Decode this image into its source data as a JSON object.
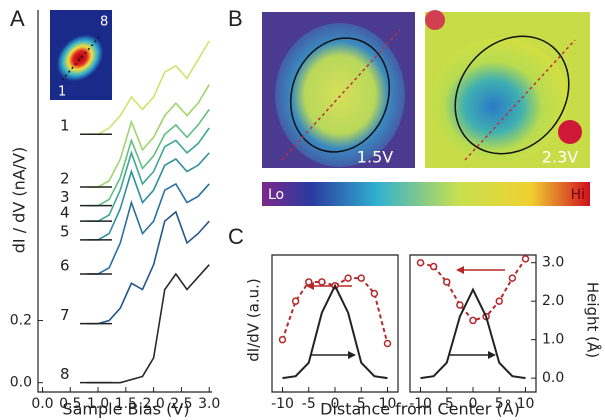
{
  "chart_data": [
    {
      "panel": "A",
      "type": "line",
      "ylabel": "dI / dV (nA/V)",
      "xlabel": "Sample Bias (V)",
      "annotations": [
        "1",
        "8"
      ],
      "x": [
        0.8,
        1.0,
        1.2,
        1.4,
        1.6,
        1.8,
        2.0,
        2.2,
        2.4,
        2.6,
        2.8,
        3.0
      ],
      "series": [
        {
          "name": "1",
          "color": "#cfe36f",
          "values": [
            0.8,
            0.8,
            0.82,
            0.86,
            0.92,
            0.88,
            0.92,
            1.0,
            1.02,
            0.98,
            1.04,
            1.1
          ]
        },
        {
          "name": "2",
          "color": "#9fd46c",
          "values": [
            0.63,
            0.63,
            0.65,
            0.72,
            0.84,
            0.75,
            0.79,
            0.86,
            0.9,
            0.86,
            0.9,
            0.96
          ]
        },
        {
          "name": "3",
          "color": "#5fbf7e",
          "values": [
            0.57,
            0.57,
            0.59,
            0.66,
            0.78,
            0.69,
            0.73,
            0.8,
            0.83,
            0.79,
            0.83,
            0.88
          ]
        },
        {
          "name": "4",
          "color": "#3fa78f",
          "values": [
            0.52,
            0.52,
            0.54,
            0.62,
            0.74,
            0.64,
            0.68,
            0.76,
            0.78,
            0.74,
            0.77,
            0.82
          ]
        },
        {
          "name": "5",
          "color": "#2f8fa0",
          "values": [
            0.46,
            0.46,
            0.48,
            0.56,
            0.68,
            0.58,
            0.62,
            0.7,
            0.72,
            0.68,
            0.7,
            0.74
          ]
        },
        {
          "name": "6",
          "color": "#2a70a0",
          "values": [
            0.35,
            0.35,
            0.37,
            0.45,
            0.58,
            0.48,
            0.52,
            0.62,
            0.64,
            0.58,
            0.6,
            0.64
          ]
        },
        {
          "name": "7",
          "color": "#22568c",
          "values": [
            0.19,
            0.19,
            0.2,
            0.24,
            0.32,
            0.3,
            0.38,
            0.52,
            0.55,
            0.45,
            0.48,
            0.52
          ]
        },
        {
          "name": "8",
          "color": "#2a2a2a",
          "values": [
            0.0,
            0.0,
            0.0,
            0.0,
            0.01,
            0.02,
            0.08,
            0.3,
            0.35,
            0.3,
            0.34,
            0.38
          ]
        }
      ],
      "xlim": [
        -0.08,
        3.05
      ],
      "ylim": [
        -0.03,
        1.2
      ],
      "xticks": [
        {
          "value": 0,
          "label": "0.0"
        },
        0.5,
        {
          "value": 1,
          "label": "1.0"
        },
        1.5,
        {
          "value": 2,
          "label": "2.0"
        },
        2.5,
        {
          "value": 3,
          "label": "3.0"
        }
      ],
      "yticks": [
        {
          "value": 0,
          "label": "0.0"
        },
        0.2
      ]
    },
    {
      "panel": "B",
      "type": "image",
      "labels": [
        "1.5V",
        "2.3V"
      ],
      "colorbar": [
        "Lo",
        "Hi"
      ]
    },
    {
      "panel": "C",
      "type": "line",
      "ylabel": "dI/dV (a.u.)",
      "xlabel": "Distance from Center (Å)",
      "series": [
        {
          "color": "#b8282a",
          "dashed": true,
          "markers": true,
          "x": [
            -10,
            -7.5,
            -5,
            -2.5,
            0,
            2.5,
            5,
            7.5,
            10
          ],
          "values": [
            1.0,
            2.0,
            2.5,
            2.5,
            2.4,
            2.6,
            2.6,
            2.2,
            0.9
          ]
        },
        {
          "color": "#222222",
          "x": [
            -10,
            -7.5,
            -5,
            -2.5,
            0,
            2.5,
            5,
            7.5,
            10
          ],
          "values": [
            0,
            0.05,
            0.4,
            1.7,
            2.4,
            1.7,
            0.4,
            0.05,
            0
          ]
        }
      ],
      "xlim": [
        -12,
        12
      ],
      "ylim": [
        -0.36,
        3.2
      ],
      "xticks": [
        -10,
        -5,
        0,
        5,
        10
      ]
    },
    {
      "type": "line",
      "y2label": "Height (Å)",
      "series": [
        {
          "color": "#b8282a",
          "dashed": true,
          "markers": true,
          "axis": "y2",
          "x": [
            -10,
            -7.5,
            -5,
            -2.5,
            0,
            2.5,
            5,
            7.5,
            10
          ],
          "values": [
            3.0,
            2.9,
            2.5,
            1.9,
            1.5,
            1.6,
            2.0,
            2.6,
            3.1
          ]
        },
        {
          "color": "#222222",
          "axis": "y2",
          "x": [
            -10,
            -7.5,
            -5,
            -2.5,
            0,
            2.5,
            5,
            7.5,
            10
          ],
          "values": [
            0,
            0.05,
            0.4,
            1.6,
            2.3,
            1.6,
            0.4,
            0.05,
            0
          ]
        }
      ],
      "xlim": [
        -12,
        12
      ],
      "y2lim": [
        -0.36,
        3.2
      ],
      "xticks": [
        -10,
        -5,
        0,
        5,
        10
      ],
      "y2ticks": [
        {
          "value": 0,
          "label": "0.0"
        },
        {
          "value": 1,
          "label": "1.0"
        },
        {
          "value": 2,
          "label": "2.0"
        },
        {
          "value": 3,
          "label": "3.0"
        }
      ]
    }
  ]
}
